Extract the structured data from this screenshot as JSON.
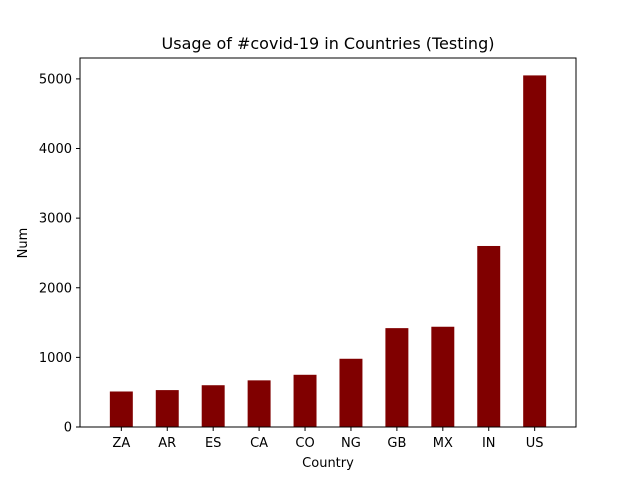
{
  "chart_data": {
    "type": "bar",
    "title": "Usage of #covid-19 in Countries (Testing)",
    "xlabel": "Country",
    "ylabel": "Num",
    "categories": [
      "ZA",
      "AR",
      "ES",
      "CA",
      "CO",
      "NG",
      "GB",
      "MX",
      "IN",
      "US"
    ],
    "values": [
      510,
      530,
      600,
      670,
      750,
      980,
      1420,
      1440,
      2600,
      5050
    ],
    "ylim": [
      0,
      5300
    ],
    "yticks": [
      0,
      1000,
      2000,
      3000,
      4000,
      5000
    ],
    "grid": false,
    "bar_color": "#800000"
  }
}
